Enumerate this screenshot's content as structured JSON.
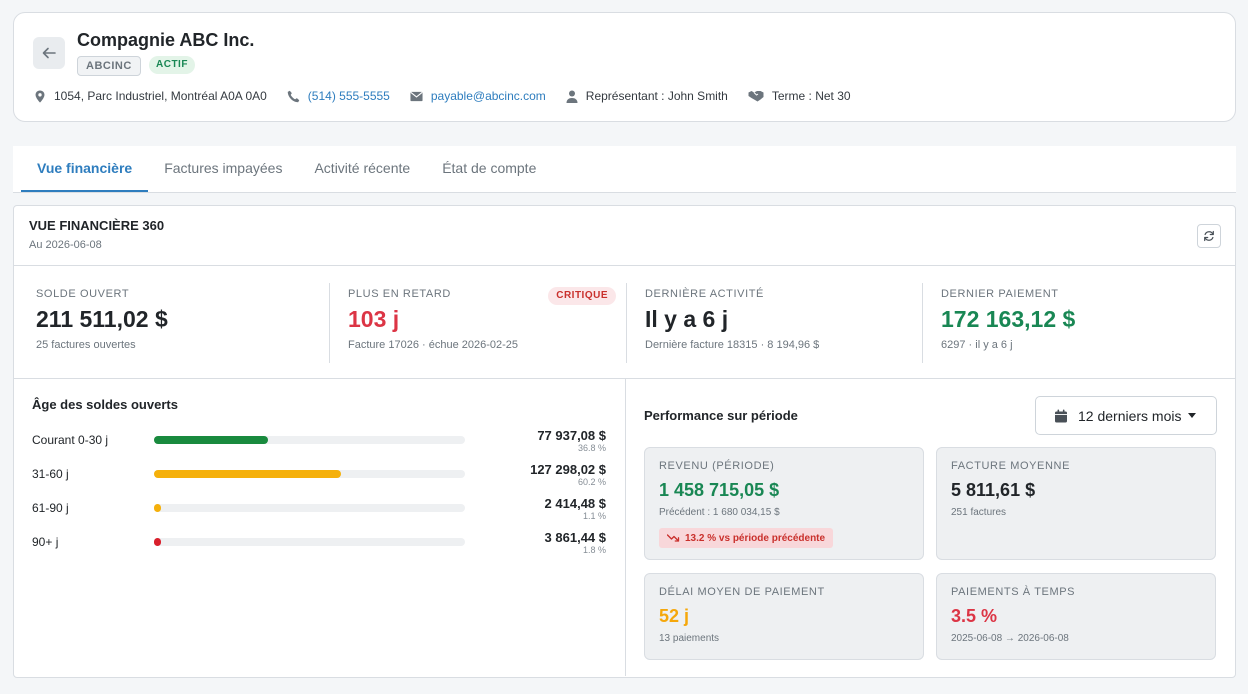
{
  "header": {
    "company_name": "Compagnie ABC Inc.",
    "code": "ABCINC",
    "status": "ACTIF",
    "address": "1054, Parc Industriel, Montréal A0A 0A0",
    "phone": "(514) 555-5555",
    "email": "payable@abcinc.com",
    "representative": "Représentant : John Smith",
    "terms": "Terme : Net 30"
  },
  "tabs": [
    {
      "label": "Vue financière",
      "active": true
    },
    {
      "label": "Factures impayées",
      "active": false
    },
    {
      "label": "Activité récente",
      "active": false
    },
    {
      "label": "État de compte",
      "active": false
    }
  ],
  "overview": {
    "title": "VUE FINANCIÈRE 360",
    "date": "Au 2026-06-08"
  },
  "kpis": [
    {
      "label": "SOLDE OUVERT",
      "value": "211 511,02 $",
      "sub": "25 factures ouvertes",
      "color": "#212529"
    },
    {
      "label": "PLUS EN RETARD",
      "value": "103 j",
      "sub": "Facture 17026 · échue 2026-02-25",
      "color": "#dc3545",
      "badge": "CRITIQUE"
    },
    {
      "label": "DERNIÈRE ACTIVITÉ",
      "value": "Il y a 6 j",
      "sub": "Dernière facture 18315 · 8 194,96 $",
      "color": "#212529"
    },
    {
      "label": "DERNIER PAIEMENT",
      "value": "172 163,12 $",
      "sub": "6297 · il y a 6 j",
      "color": "#198754"
    }
  ],
  "aging": {
    "title": "Âge des soldes ouverts",
    "rows": [
      {
        "label": "Courant 0-30 j",
        "amount": "77 937,08 $",
        "pct": "36.8 %",
        "fraction": 0.368,
        "color": "#198a3e"
      },
      {
        "label": "31-60 j",
        "amount": "127 298,02 $",
        "pct": "60.2 %",
        "fraction": 0.602,
        "color": "#f5b00b"
      },
      {
        "label": "61-90 j",
        "amount": "2 414,48 $",
        "pct": "1.1 %",
        "fraction": 0.011,
        "color": "#f5b00b"
      },
      {
        "label": "90+ j",
        "amount": "3 861,44 $",
        "pct": "1.8 %",
        "fraction": 0.018,
        "color": "#d9202c"
      }
    ]
  },
  "performance": {
    "title": "Performance sur période",
    "period": "12 derniers mois",
    "revenue": {
      "label": "REVENU (PÉRIODE)",
      "value": "1 458 715,05 $",
      "sub": "Précédent : 1 680 034,15 $",
      "trend": "13.2 % vs période précédente",
      "color": "#198754"
    },
    "avg_invoice": {
      "label": "FACTURE MOYENNE",
      "value": "5 811,61 $",
      "sub": "251 factures",
      "color": "#212529"
    },
    "avg_delay": {
      "label": "DÉLAI MOYEN DE PAIEMENT",
      "value": "52 j",
      "sub": "13 paiements",
      "color": "#f5a70b"
    },
    "on_time": {
      "label": "PAIEMENTS À TEMPS",
      "value": "3.5 %",
      "sub": "2025-06-08 → 2026-06-08",
      "color": "#dc3545"
    }
  }
}
